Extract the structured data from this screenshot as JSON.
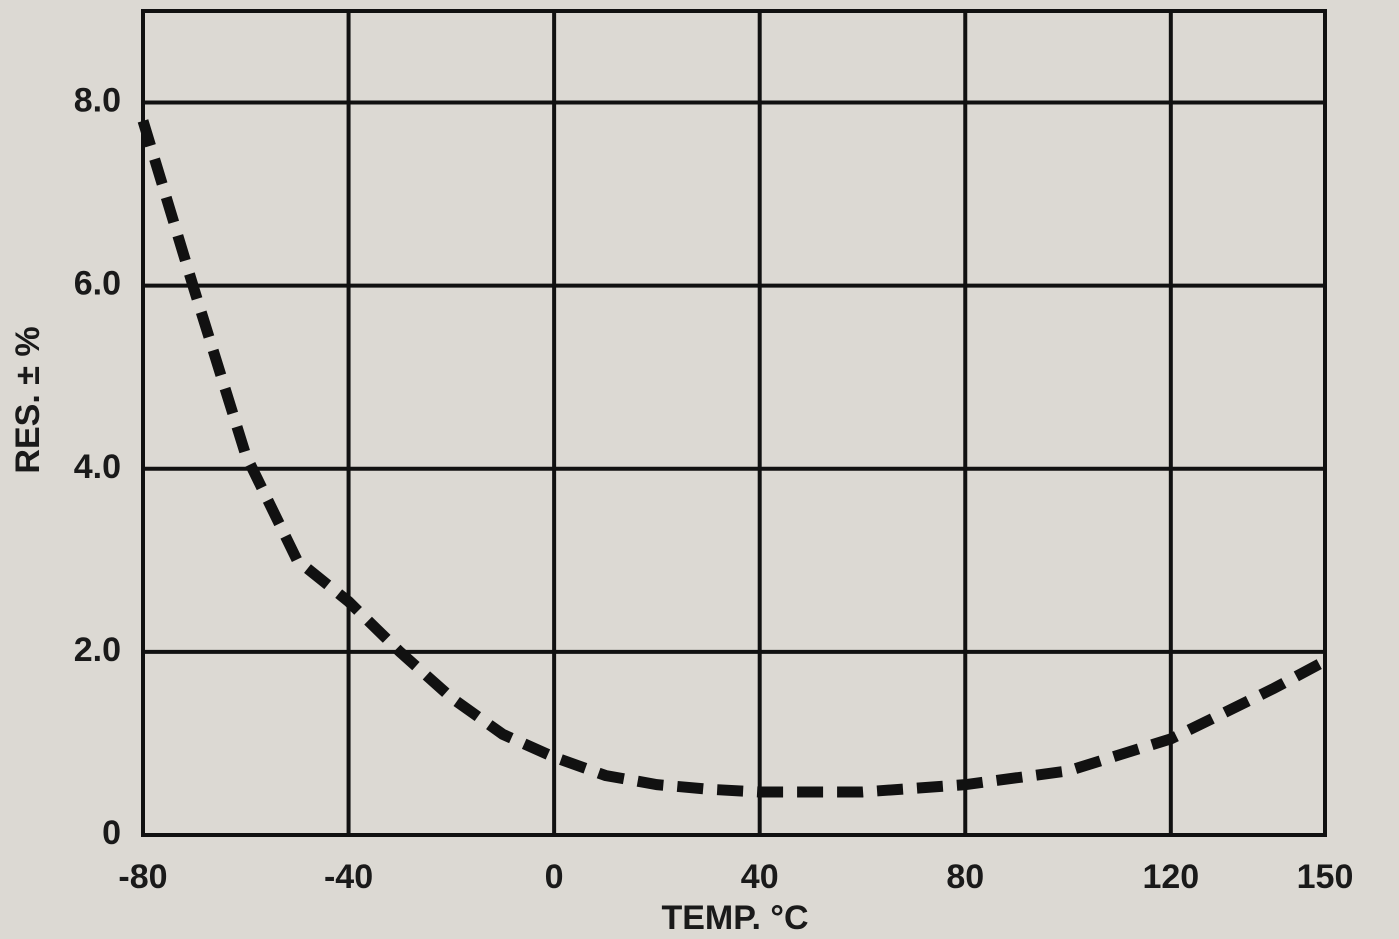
{
  "chart_data": {
    "type": "line",
    "x_label": "TEMP. °C",
    "y_label": "RES. ± %",
    "x": [
      -80,
      -70,
      -60,
      -50,
      -40,
      -30,
      -20,
      -10,
      0,
      10,
      20,
      30,
      40,
      60,
      80,
      100,
      120,
      140,
      150
    ],
    "series": [
      {
        "color": "#111111",
        "values": [
          7.8,
          5.95,
          4.15,
          3.0,
          2.55,
          2.0,
          1.5,
          1.1,
          0.85,
          0.65,
          0.55,
          0.5,
          0.47,
          0.47,
          0.55,
          0.7,
          1.05,
          1.6,
          1.9
        ]
      }
    ],
    "xlim": [
      -80,
      150
    ],
    "xticks": [
      -80,
      -40,
      0,
      40,
      80,
      120,
      150
    ],
    "ylim": [
      0,
      9
    ],
    "yticks": [
      0,
      {
        "value": 2,
        "label": "2.0"
      },
      {
        "value": 4,
        "label": "4.0"
      },
      {
        "value": 6,
        "label": "6.0"
      },
      {
        "value": 8,
        "label": "8.0"
      }
    ],
    "grid": true,
    "dashed": true
  }
}
